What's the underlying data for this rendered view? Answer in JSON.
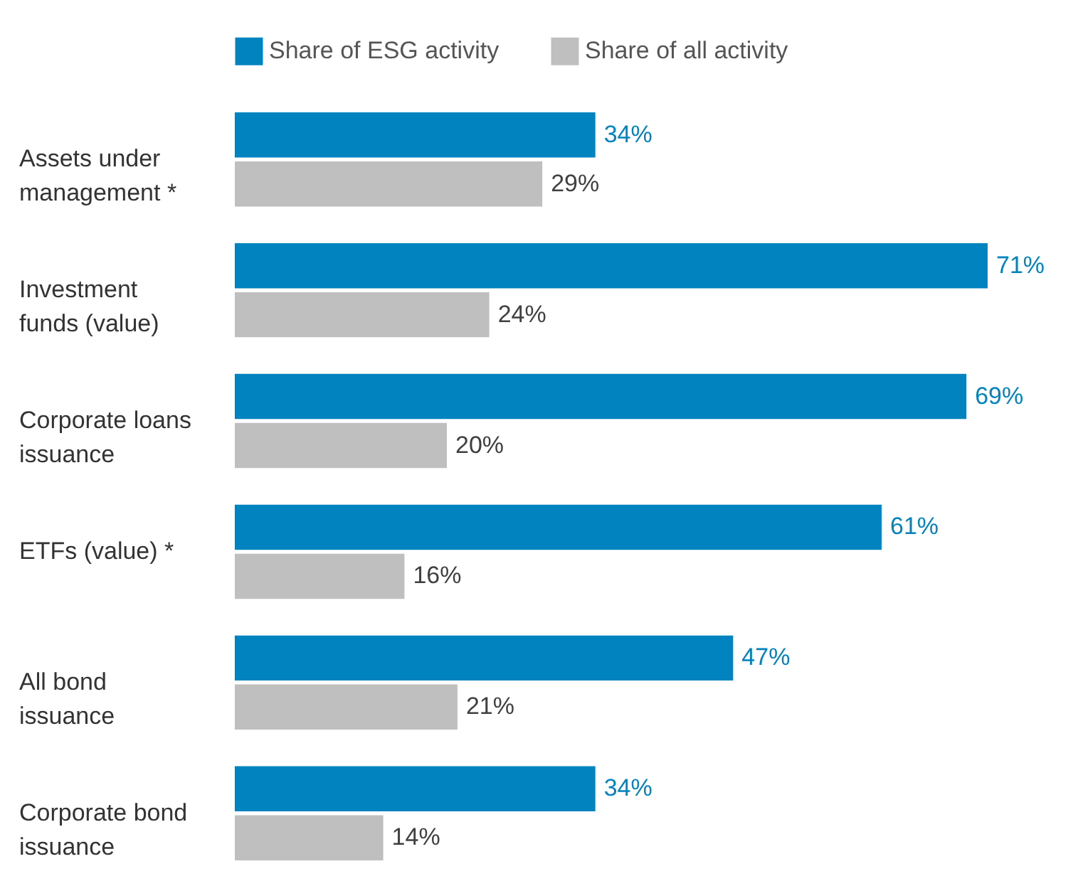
{
  "chart_data": {
    "type": "bar",
    "orientation": "horizontal",
    "categories": [
      "Assets under management *",
      "Investment funds (value)",
      "Corporate loans issuance",
      "ETFs (value) *",
      "All bond issuance",
      "Corporate bond issuance"
    ],
    "series": [
      {
        "name": "Share of ESG activity",
        "color": "#0083be",
        "values": [
          34,
          71,
          69,
          61,
          47,
          34
        ],
        "value_labels": [
          "34%",
          "71%",
          "69%",
          "61%",
          "47%",
          "34%"
        ]
      },
      {
        "name": "Share of all activity",
        "color": "#bfbfbf",
        "values": [
          29,
          24,
          20,
          16,
          21,
          14
        ],
        "value_labels": [
          "29%",
          "24%",
          "20%",
          "16%",
          "21%",
          "14%"
        ]
      }
    ],
    "tick_labels": "y",
    "legend": "top"
  }
}
